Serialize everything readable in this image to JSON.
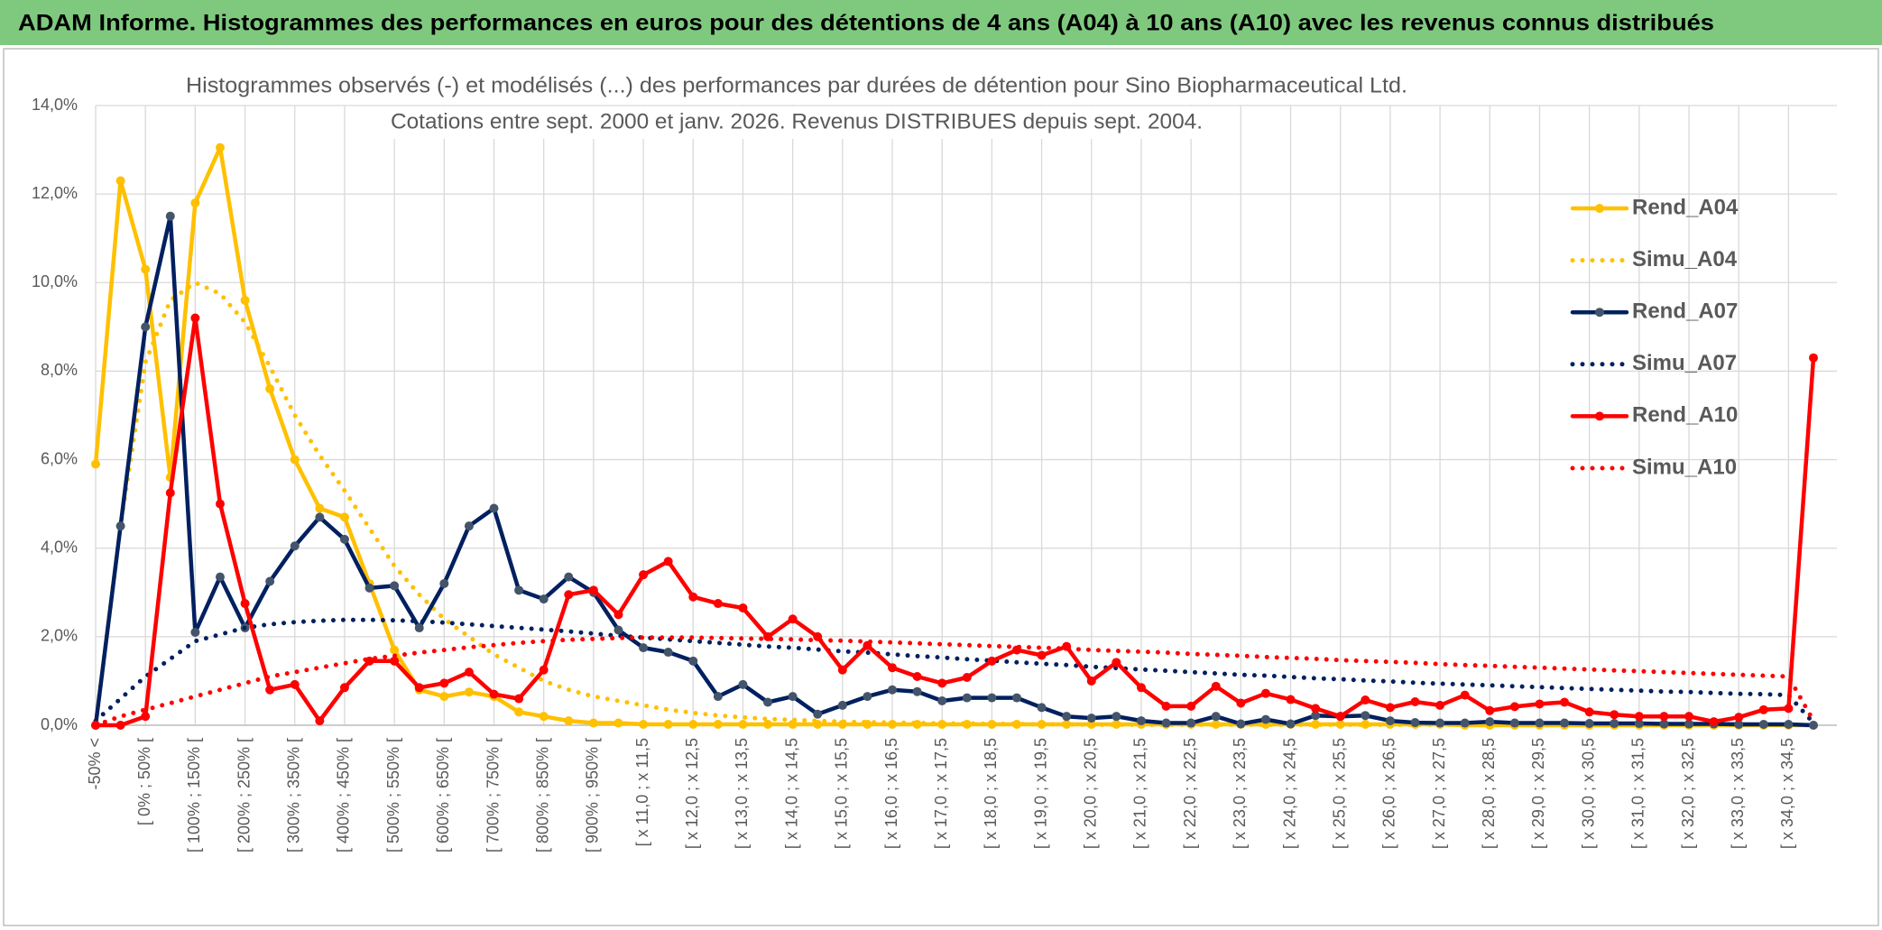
{
  "chart_data": {
    "type": "line",
    "title": "ADAM Informe. Histogrammes des performances en euros pour des détentions de 4 ans (A04) à 10 ans (A10) avec les revenus connus distribués",
    "subtitle": [
      "Histogrammes observés (-) et modélisés (...) des performances par durées de détention pour Sino Biopharmaceutical Ltd.",
      "Cotations entre sept. 2000 et janv. 2026. Revenus DISTRIBUES depuis sept. 2004."
    ],
    "categories": [
      "-50% <",
      null,
      "[ 0% ; 50% [",
      null,
      "[ 100% ; 150% [",
      null,
      "[ 200% ; 250% [",
      null,
      "[ 300% ; 350% [",
      null,
      "[ 400% ; 450% [",
      null,
      "[ 500% ; 550% [",
      null,
      "[ 600% ; 650% [",
      null,
      "[ 700% ; 750% [",
      null,
      "[ 800% ; 850% [",
      null,
      "[ 900% ; 950% [",
      null,
      "[ x 11,0 ; x 11,5",
      null,
      "[ x 12,0 ; x 12,5",
      null,
      "[ x 13,0 ; x 13,5",
      null,
      "[ x 14,0 ; x 14,5",
      null,
      "[ x 15,0 ; x 15,5",
      null,
      "[ x 16,0 ; x 16,5",
      null,
      "[ x 17,0 ; x 17,5",
      null,
      "[ x 18,0 ; x 18,5",
      null,
      "[ x 19,0 ; x 19,5",
      null,
      "[ x 20,0 ; x 20,5",
      null,
      "[ x 21,0 ; x 21,5",
      null,
      "[ x 22,0 ; x 22,5",
      null,
      "[ x 23,0 ; x 23,5",
      null,
      "[ x 24,0 ; x 24,5",
      null,
      "[ x 25,0 ; x 25,5",
      null,
      "[ x 26,0 ; x 26,5",
      null,
      "[ x 27,0 ; x 27,5",
      null,
      "[ x 28,0 ; x 28,5",
      null,
      "[ x 29,0 ; x 29,5",
      null,
      "[ x 30,0 ; x 30,5",
      null,
      "[ x 31,0 ; x 31,5",
      null,
      "[ x 32,0 ; x 32,5",
      null,
      "[ x 33,0 ; x 33,5",
      null,
      "[ x 34,0 ; x 34,5",
      null
    ],
    "series": [
      {
        "name": "Rend_A04",
        "color": "#ffc000",
        "line_style": "solid",
        "markers": true,
        "values": [
          5.9,
          12.3,
          10.3,
          5.6,
          11.8,
          13.05,
          9.6,
          7.6,
          6.0,
          4.9,
          4.7,
          3.2,
          1.7,
          0.8,
          0.65,
          0.75,
          0.65,
          0.3,
          0.2,
          0.1,
          0.05,
          0.05,
          0.02,
          0.02,
          0.02,
          0.02,
          0.02,
          0.02,
          0.02,
          0.02,
          0.02,
          0.02,
          0.02,
          0.02,
          0.02,
          0.02,
          0.02,
          0.02,
          0.02,
          0.02,
          0.02,
          0.02,
          0.02,
          0.02,
          0.02,
          0.02,
          0.02,
          0.02,
          0.02,
          0.02,
          0.02,
          0.02,
          0.02,
          0.02,
          0.02,
          0,
          0,
          0,
          0,
          0,
          0,
          0,
          0,
          0,
          0,
          0,
          0,
          0,
          0,
          0
        ]
      },
      {
        "name": "Simu_A04",
        "color": "#ffc000",
        "line_style": "dotted",
        "markers": false,
        "values": [
          0,
          4.5,
          8.2,
          9.6,
          10.0,
          9.75,
          9.1,
          8.1,
          7.0,
          6.1,
          5.3,
          4.45,
          3.6,
          2.95,
          2.4,
          2.0,
          1.6,
          1.3,
          1.0,
          0.8,
          0.65,
          0.55,
          0.45,
          0.35,
          0.28,
          0.22,
          0.18,
          0.14,
          0.12,
          0.1,
          0.08,
          0.07,
          0.06,
          0.05,
          0.04,
          0.04,
          0.03,
          0.03,
          0.02,
          0.02,
          0.01,
          0.01,
          0.01,
          0.01,
          0.01,
          0.01,
          0.01,
          0.01,
          0.01,
          0.01,
          0.01,
          0.01,
          0.01,
          0.01,
          0.01,
          0.01,
          0.01,
          0.01,
          0.01,
          0.01,
          0.01,
          0.01,
          0.01,
          0.01,
          0.01,
          0.01,
          0.01,
          0.01,
          0.01,
          0
        ]
      },
      {
        "name": "Rend_A07",
        "color": "#002060",
        "line_style": "solid",
        "markers": true,
        "marker_color": "#44546a",
        "values": [
          0,
          4.5,
          9.0,
          11.5,
          2.1,
          3.35,
          2.2,
          3.25,
          4.05,
          4.7,
          4.2,
          3.1,
          3.15,
          2.2,
          3.2,
          4.5,
          4.9,
          3.05,
          2.85,
          3.35,
          3.0,
          2.15,
          1.75,
          1.65,
          1.45,
          0.65,
          0.92,
          0.52,
          0.65,
          0.25,
          0.45,
          0.65,
          0.8,
          0.76,
          0.55,
          0.62,
          0.62,
          0.62,
          0.4,
          0.2,
          0.16,
          0.2,
          0.1,
          0.05,
          0.05,
          0.2,
          0.03,
          0.13,
          0.03,
          0.22,
          0.2,
          0.22,
          0.1,
          0.06,
          0.05,
          0.05,
          0.08,
          0.05,
          0.05,
          0.05,
          0.04,
          0.04,
          0.04,
          0.03,
          0.03,
          0.03,
          0.02,
          0.02,
          0.02,
          0
        ]
      },
      {
        "name": "Simu_A07",
        "color": "#002060",
        "line_style": "dotted",
        "markers": false,
        "values": [
          0.1,
          0.6,
          1.1,
          1.5,
          1.9,
          2.05,
          2.2,
          2.28,
          2.33,
          2.36,
          2.38,
          2.38,
          2.37,
          2.35,
          2.32,
          2.28,
          2.24,
          2.2,
          2.16,
          2.12,
          2.07,
          2.02,
          1.98,
          1.94,
          1.9,
          1.86,
          1.82,
          1.78,
          1.75,
          1.71,
          1.67,
          1.64,
          1.6,
          1.56,
          1.53,
          1.49,
          1.46,
          1.42,
          1.39,
          1.36,
          1.32,
          1.29,
          1.26,
          1.23,
          1.2,
          1.17,
          1.14,
          1.12,
          1.09,
          1.06,
          1.04,
          1.01,
          0.99,
          0.96,
          0.94,
          0.92,
          0.9,
          0.88,
          0.86,
          0.84,
          0.82,
          0.8,
          0.78,
          0.76,
          0.75,
          0.73,
          0.71,
          0.7,
          0.68,
          0.05
        ]
      },
      {
        "name": "Rend_A10",
        "color": "#ff0000",
        "line_style": "solid",
        "markers": true,
        "values": [
          0,
          0,
          0.2,
          5.25,
          9.2,
          5.0,
          2.75,
          0.8,
          0.92,
          0.1,
          0.85,
          1.45,
          1.45,
          0.85,
          0.95,
          1.2,
          0.7,
          0.6,
          1.25,
          2.95,
          3.05,
          2.5,
          3.4,
          3.7,
          2.9,
          2.75,
          2.65,
          2.0,
          2.4,
          2.0,
          1.25,
          1.8,
          1.3,
          1.1,
          0.95,
          1.08,
          1.45,
          1.7,
          1.58,
          1.78,
          1.0,
          1.42,
          0.85,
          0.43,
          0.43,
          0.88,
          0.5,
          0.72,
          0.58,
          0.38,
          0.2,
          0.57,
          0.4,
          0.53,
          0.45,
          0.68,
          0.33,
          0.42,
          0.48,
          0.52,
          0.3,
          0.24,
          0.2,
          0.2,
          0.2,
          0.08,
          0.18,
          0.35,
          0.38,
          8.3
        ]
      },
      {
        "name": "Simu_A10",
        "color": "#ff0000",
        "line_style": "dotted",
        "markers": false,
        "values": [
          0,
          0.2,
          0.35,
          0.5,
          0.65,
          0.8,
          0.95,
          1.1,
          1.2,
          1.3,
          1.4,
          1.5,
          1.57,
          1.64,
          1.7,
          1.76,
          1.81,
          1.86,
          1.9,
          1.93,
          1.95,
          1.97,
          1.98,
          1.98,
          1.98,
          1.97,
          1.96,
          1.95,
          1.94,
          1.92,
          1.91,
          1.89,
          1.87,
          1.85,
          1.83,
          1.81,
          1.79,
          1.77,
          1.75,
          1.73,
          1.7,
          1.68,
          1.66,
          1.64,
          1.61,
          1.59,
          1.57,
          1.54,
          1.52,
          1.5,
          1.47,
          1.45,
          1.43,
          1.41,
          1.38,
          1.36,
          1.34,
          1.32,
          1.3,
          1.28,
          1.26,
          1.24,
          1.22,
          1.2,
          1.18,
          1.16,
          1.14,
          1.12,
          1.1,
          0.1
        ]
      }
    ],
    "ylim": [
      0,
      14
    ],
    "yticks": [
      {
        "value": 0,
        "label": "0,0%"
      },
      {
        "value": 2,
        "label": "2,0%"
      },
      {
        "value": 4,
        "label": "4,0%"
      },
      {
        "value": 6,
        "label": "6,0%"
      },
      {
        "value": 8,
        "label": "8,0%"
      },
      {
        "value": 10,
        "label": "10,0%"
      },
      {
        "value": 12,
        "label": "12,0%"
      },
      {
        "value": 14,
        "label": "14,0%"
      }
    ],
    "grid": true,
    "legend": "right"
  }
}
